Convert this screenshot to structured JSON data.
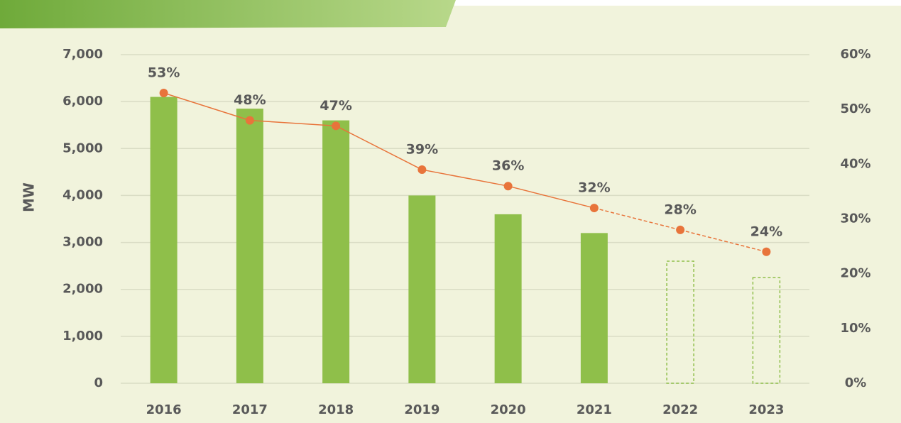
{
  "chart_data": {
    "type": "bar",
    "ylabel": "MW",
    "categories": [
      "2016",
      "2017",
      "2018",
      "2019",
      "2020",
      "2021",
      "2022",
      "2023"
    ],
    "projected": [
      false,
      false,
      false,
      false,
      false,
      false,
      true,
      true
    ],
    "series": [
      {
        "type": "bar",
        "color": "#8fbf4a",
        "values": [
          6100,
          5850,
          5600,
          4000,
          3600,
          3200,
          2600,
          2250
        ]
      },
      {
        "type": "line",
        "axis": "y2",
        "color": "#e8743b",
        "values": [
          53,
          48,
          47,
          39,
          36,
          32,
          28,
          24
        ],
        "value_labels": [
          "53%",
          "48%",
          "47%",
          "39%",
          "36%",
          "32%",
          "28%",
          "24%"
        ]
      }
    ],
    "ylim": [
      0,
      7000
    ],
    "yticks": [
      0,
      {
        "value": 1000,
        "label": "1,000"
      },
      {
        "value": 2000,
        "label": "2,000"
      },
      {
        "value": 3000,
        "label": "3,000"
      },
      {
        "value": 4000,
        "label": "4,000"
      },
      {
        "value": 5000,
        "label": "5,000"
      },
      {
        "value": 6000,
        "label": "6,000"
      },
      {
        "value": 7000,
        "label": "7,000"
      }
    ],
    "y2lim": [
      0,
      60
    ],
    "y2ticks": [
      {
        "value": 0,
        "label": "0%"
      },
      {
        "value": 10,
        "label": "10%"
      },
      {
        "value": 20,
        "label": "20%"
      },
      {
        "value": 30,
        "label": "30%"
      },
      {
        "value": 40,
        "label": "40%"
      },
      {
        "value": 50,
        "label": "50%"
      },
      {
        "value": 60,
        "label": "60%"
      }
    ],
    "grid": true
  }
}
